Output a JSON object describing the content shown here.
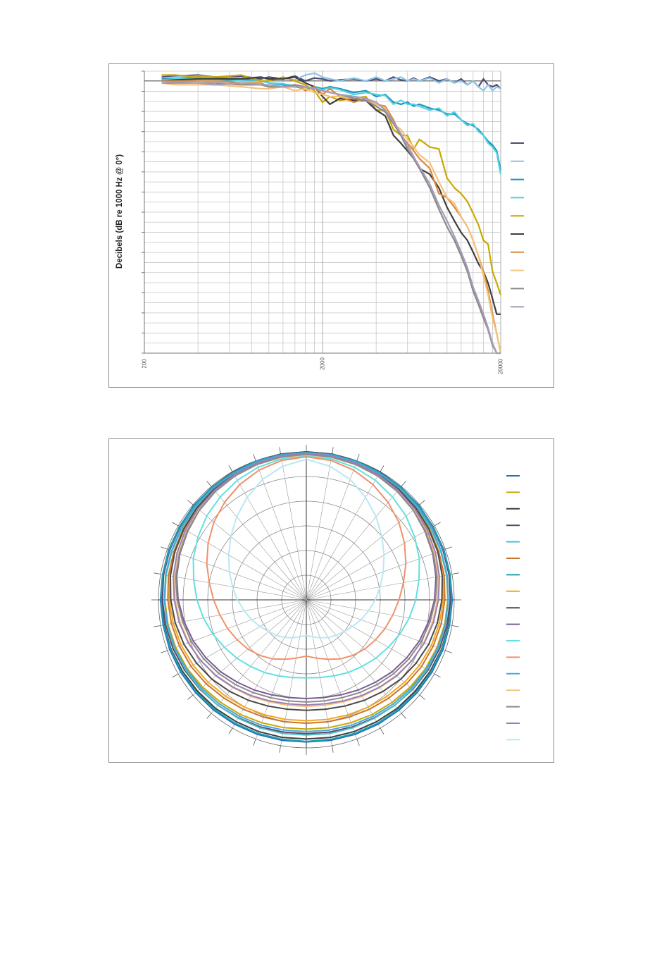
{
  "chart_data": [
    {
      "type": "line",
      "ylabel": "Decibels (dB re 1000 Hz @ 0°)",
      "xscale": "log",
      "xlim": [
        200,
        20000
      ],
      "ylim": [
        -14,
        0.5
      ],
      "x_ticks": [
        "200",
        "2000",
        "20000"
      ],
      "grid": true,
      "legend": "right",
      "x": [
        250,
        300,
        400,
        500,
        700,
        900,
        1000,
        1200,
        1400,
        1600,
        1800,
        2000,
        2200,
        2500,
        3000,
        3500,
        4000,
        4500,
        5000,
        5500,
        6000,
        6500,
        7000,
        8000,
        9000,
        10000,
        11000,
        12000,
        13000,
        14000,
        15000,
        16000,
        17000,
        18000,
        19000,
        20000
      ],
      "series": [
        {
          "color": "#4e4a6e",
          "values": [
            0.2,
            0.25,
            0.3,
            0.2,
            0.25,
            0.1,
            0.2,
            0.1,
            0.25,
            0.0,
            0.15,
            0.1,
            0.0,
            0.05,
            0.1,
            0.0,
            0.1,
            0.0,
            0.2,
            0.05,
            0.0,
            0.15,
            0.0,
            0.2,
            0.0,
            0.1,
            -0.1,
            0.1,
            -0.2,
            0.0,
            -0.3,
            0.1,
            -0.2,
            -0.3,
            -0.2,
            -0.4
          ]
        },
        {
          "color": "#8cc4e8",
          "values": [
            0.15,
            0.2,
            0.25,
            0.2,
            0.15,
            0.2,
            0.05,
            0.15,
            0.05,
            0.3,
            0.4,
            0.2,
            0.1,
            0.0,
            0.15,
            0.0,
            0.2,
            0.0,
            0.1,
            0.2,
            0.0,
            0.1,
            0.0,
            0.15,
            -0.1,
            0.1,
            -0.1,
            0.0,
            -0.2,
            0.0,
            -0.3,
            -0.5,
            -0.2,
            -0.5,
            -0.3,
            -0.4
          ]
        },
        {
          "color": "#1f8fbf",
          "values": [
            0.1,
            0.1,
            0.2,
            0.15,
            0.1,
            0.0,
            -0.1,
            -0.2,
            -0.3,
            -0.4,
            -0.3,
            -0.4,
            -0.3,
            -0.4,
            -0.6,
            -0.5,
            -0.8,
            -0.7,
            -1.1,
            -1.2,
            -1.1,
            -1.3,
            -1.2,
            -1.4,
            -1.5,
            -1.7,
            -1.7,
            -2.0,
            -2.2,
            -2.3,
            -2.5,
            -2.8,
            -3.1,
            -3.3,
            -3.6,
            -4.6
          ]
        },
        {
          "color": "#4fd2e0",
          "values": [
            0.05,
            0.1,
            0.15,
            0.1,
            0.0,
            0.0,
            -0.1,
            -0.15,
            -0.25,
            -0.35,
            -0.35,
            -0.45,
            -0.35,
            -0.45,
            -0.7,
            -0.6,
            -0.7,
            -0.75,
            -1.2,
            -1.0,
            -1.2,
            -1.2,
            -1.3,
            -1.5,
            -1.4,
            -1.8,
            -1.6,
            -2.0,
            -2.3,
            -2.2,
            -2.6,
            -2.8,
            -3.2,
            -3.4,
            -3.7,
            -4.8
          ]
        },
        {
          "color": "#c9a800",
          "values": [
            0.3,
            0.3,
            0.2,
            0.2,
            0.3,
            0.0,
            0.0,
            0.2,
            0.0,
            -0.2,
            -0.5,
            -1.1,
            -0.8,
            -1.0,
            -0.9,
            -0.8,
            -1.5,
            -1.5,
            -2.5,
            -2.8,
            -2.8,
            -3.5,
            -3.0,
            -3.4,
            -3.5,
            -5.0,
            -5.5,
            -5.8,
            -6.2,
            -6.8,
            -7.4,
            -8.2,
            -8.4,
            -9.8,
            -10.4,
            -11.0
          ]
        },
        {
          "color": "#3e3e3e",
          "values": [
            0.0,
            0.05,
            0.1,
            0.1,
            0.1,
            0.2,
            0.1,
            0.1,
            0.2,
            -0.1,
            -0.3,
            -0.8,
            -1.2,
            -0.9,
            -1.0,
            -1.0,
            -1.5,
            -1.8,
            -2.8,
            -3.2,
            -3.6,
            -4.0,
            -4.5,
            -4.8,
            -5.5,
            -6.5,
            -7.2,
            -7.8,
            -8.2,
            -8.8,
            -9.4,
            -9.8,
            -10.4,
            -11.2,
            -12.0,
            -12.0
          ]
        },
        {
          "color": "#d98a3e",
          "values": [
            0.0,
            0.0,
            0.0,
            0.0,
            -0.1,
            -0.1,
            -0.3,
            -0.3,
            -0.2,
            -0.5,
            -0.3,
            -0.7,
            -0.4,
            -0.8,
            -1.1,
            -0.9,
            -1.2,
            -1.3,
            -2.0,
            -2.8,
            -3.2,
            -3.6,
            -4.0,
            -4.5,
            -5.8,
            -6.0,
            -6.5,
            -7.0,
            -7.5,
            -8.2,
            -9.0,
            -9.8,
            -10.8,
            -12.0,
            -13.0,
            -14.0
          ]
        },
        {
          "color": "#f6c27a",
          "values": [
            -0.1,
            -0.2,
            -0.2,
            -0.2,
            -0.3,
            -0.4,
            -0.4,
            -0.3,
            -0.5,
            -0.4,
            -0.6,
            -0.7,
            -0.8,
            -0.8,
            -0.9,
            -1.0,
            -1.2,
            -1.4,
            -2.2,
            -2.5,
            -3.0,
            -3.4,
            -3.8,
            -4.2,
            -5.2,
            -6.0,
            -6.3,
            -7.0,
            -7.5,
            -8.2,
            -9.0,
            -10.0,
            -11.0,
            -12.2,
            -13.0,
            -14.0
          ]
        },
        {
          "color": "#8a8a8a",
          "values": [
            -0.1,
            -0.1,
            -0.1,
            -0.1,
            -0.2,
            -0.2,
            -0.3,
            -0.3,
            -0.2,
            -0.3,
            -0.4,
            -0.5,
            -0.6,
            -0.7,
            -0.9,
            -1.0,
            -1.3,
            -1.6,
            -2.2,
            -2.8,
            -3.5,
            -4.0,
            -4.5,
            -5.5,
            -6.6,
            -7.5,
            -8.2,
            -9.0,
            -9.8,
            -10.8,
            -11.5,
            -12.2,
            -12.8,
            -13.6,
            -14.0,
            -14.0
          ]
        },
        {
          "color": "#a99bb8",
          "values": [
            -0.1,
            -0.05,
            -0.1,
            -0.2,
            -0.1,
            -0.2,
            -0.2,
            -0.3,
            -0.3,
            -0.3,
            -0.4,
            -0.5,
            -0.6,
            -0.7,
            -0.8,
            -0.9,
            -1.1,
            -1.5,
            -2.1,
            -2.7,
            -3.3,
            -3.9,
            -4.4,
            -5.3,
            -6.4,
            -7.2,
            -8.0,
            -8.8,
            -9.6,
            -10.6,
            -11.3,
            -12.0,
            -12.7,
            -13.5,
            -14.0,
            -14.0
          ]
        }
      ]
    },
    {
      "type": "polar",
      "rlim": [
        -30,
        0
      ],
      "r_rings": 6,
      "angle_step_deg": 10,
      "grid": true,
      "legend": "right",
      "angles_deg": [
        0,
        10,
        20,
        30,
        40,
        50,
        60,
        70,
        80,
        90,
        100,
        110,
        120,
        130,
        140,
        150,
        160,
        170,
        180
      ],
      "series": [
        {
          "color": "#1f6fbf",
          "values": [
            0,
            0,
            -0.1,
            -0.1,
            -0.2,
            -0.2,
            -0.3,
            -0.3,
            -0.4,
            -0.4,
            -0.5,
            -0.5,
            -0.6,
            -0.7,
            -0.8,
            -0.9,
            -1.0,
            -1.1,
            -1.2
          ]
        },
        {
          "color": "#c9a800",
          "values": [
            -0.3,
            -0.3,
            -0.4,
            -0.5,
            -0.6,
            -0.7,
            -0.8,
            -1.0,
            -1.1,
            -1.3,
            -1.5,
            -1.8,
            -2.1,
            -2.5,
            -2.9,
            -3.2,
            -3.5,
            -3.7,
            -3.8
          ]
        },
        {
          "color": "#3e3e3e",
          "values": [
            0,
            0,
            -0.1,
            -0.1,
            -0.2,
            -0.3,
            -0.3,
            -0.4,
            -0.5,
            -0.6,
            -0.7,
            -0.8,
            -1.0,
            -1.2,
            -1.3,
            -1.5,
            -1.6,
            -1.7,
            -1.8
          ]
        },
        {
          "color": "#5b4a6e",
          "values": [
            0,
            -0.1,
            -0.1,
            -0.2,
            -0.2,
            -0.3,
            -0.4,
            -0.5,
            -0.6,
            -0.8,
            -1.0,
            -1.2,
            -1.5,
            -1.8,
            -2.1,
            -2.4,
            -2.6,
            -2.8,
            -2.9
          ]
        },
        {
          "color": "#4fc0c8",
          "values": [
            -0.4,
            -0.4,
            -0.5,
            -0.6,
            -0.7,
            -0.8,
            -0.9,
            -1.0,
            -1.1,
            -1.2,
            -1.3,
            -1.5,
            -1.7,
            -1.9,
            -2.1,
            -2.3,
            -2.4,
            -2.5,
            -2.6
          ]
        },
        {
          "color": "#c8752e",
          "values": [
            -0.5,
            -0.5,
            -0.6,
            -0.7,
            -0.8,
            -1.0,
            -1.2,
            -1.4,
            -1.6,
            -1.9,
            -2.2,
            -2.6,
            -3.0,
            -3.5,
            -4.0,
            -4.4,
            -4.7,
            -4.9,
            -5.0
          ]
        },
        {
          "color": "#1f9fb0",
          "values": [
            -0.1,
            -0.1,
            -0.1,
            -0.2,
            -0.2,
            -0.3,
            -0.3,
            -0.4,
            -0.4,
            -0.5,
            -0.6,
            -0.7,
            -0.8,
            -0.9,
            -1.0,
            -1.1,
            -1.2,
            -1.3,
            -1.3
          ]
        },
        {
          "color": "#f2a820",
          "values": [
            -0.6,
            -0.6,
            -0.7,
            -0.9,
            -1.0,
            -1.2,
            -1.4,
            -1.6,
            -1.9,
            -2.2,
            -2.6,
            -3.0,
            -3.5,
            -4.0,
            -4.5,
            -4.9,
            -5.2,
            -5.4,
            -5.5
          ]
        },
        {
          "color": "#4a4a4a",
          "values": [
            -0.3,
            -0.3,
            -0.4,
            -0.6,
            -0.8,
            -1.0,
            -1.3,
            -1.6,
            -2.0,
            -2.5,
            -3.0,
            -3.6,
            -4.3,
            -5.0,
            -5.8,
            -6.5,
            -7.1,
            -7.5,
            -7.6
          ]
        },
        {
          "color": "#7b5c94",
          "values": [
            -0.4,
            -0.5,
            -0.7,
            -1.0,
            -1.3,
            -1.7,
            -2.2,
            -2.7,
            -3.3,
            -4.0,
            -4.8,
            -5.6,
            -6.5,
            -7.3,
            -8.2,
            -8.9,
            -9.5,
            -9.9,
            -10.0
          ]
        },
        {
          "color": "#62e0e0",
          "values": [
            -0.8,
            -1.0,
            -1.4,
            -2.0,
            -2.8,
            -3.6,
            -4.6,
            -5.6,
            -6.8,
            -7.8,
            -8.8,
            -9.8,
            -10.8,
            -11.6,
            -12.4,
            -13.0,
            -13.6,
            -14.0,
            -14.2
          ]
        },
        {
          "color": "#f0916a",
          "values": [
            -1.0,
            -1.3,
            -2.0,
            -3.0,
            -4.2,
            -5.5,
            -7.0,
            -8.5,
            -10.0,
            -11.2,
            -12.2,
            -13.0,
            -13.8,
            -14.5,
            -15.3,
            -16.2,
            -17.2,
            -18.0,
            -18.6
          ]
        },
        {
          "color": "#4aa8d8",
          "values": [
            -0.2,
            -0.2,
            -0.3,
            -0.4,
            -0.5,
            -0.6,
            -0.7,
            -0.9,
            -1.0,
            -1.2,
            -1.4,
            -1.6,
            -1.9,
            -2.2,
            -2.5,
            -2.8,
            -3.0,
            -3.2,
            -3.3
          ]
        },
        {
          "color": "#f6c27a",
          "values": [
            -0.6,
            -0.7,
            -0.8,
            -1.0,
            -1.3,
            -1.6,
            -2.0,
            -2.4,
            -2.9,
            -3.4,
            -4.0,
            -4.6,
            -5.3,
            -6.0,
            -6.8,
            -7.4,
            -8.0,
            -8.3,
            -8.4
          ]
        },
        {
          "color": "#8a8a8a",
          "values": [
            -0.5,
            -0.6,
            -0.8,
            -1.0,
            -1.3,
            -1.7,
            -2.1,
            -2.6,
            -3.1,
            -3.8,
            -4.5,
            -5.2,
            -6.0,
            -6.8,
            -7.6,
            -8.3,
            -8.9,
            -9.2,
            -9.3
          ]
        },
        {
          "color": "#9a7fb5",
          "values": [
            -0.3,
            -0.4,
            -0.5,
            -0.7,
            -1.0,
            -1.3,
            -1.7,
            -2.1,
            -2.6,
            -3.2,
            -3.8,
            -4.5,
            -5.3,
            -6.1,
            -6.9,
            -7.6,
            -8.2,
            -8.6,
            -8.7
          ]
        },
        {
          "color": "#b8e8f4",
          "values": [
            -1.5,
            -2.5,
            -4.0,
            -6.0,
            -8.0,
            -10.0,
            -11.8,
            -13.4,
            -14.8,
            -16.0,
            -17.2,
            -18.2,
            -19.2,
            -20.0,
            -20.6,
            -21.2,
            -21.8,
            -22.4,
            -22.8
          ]
        }
      ]
    }
  ]
}
